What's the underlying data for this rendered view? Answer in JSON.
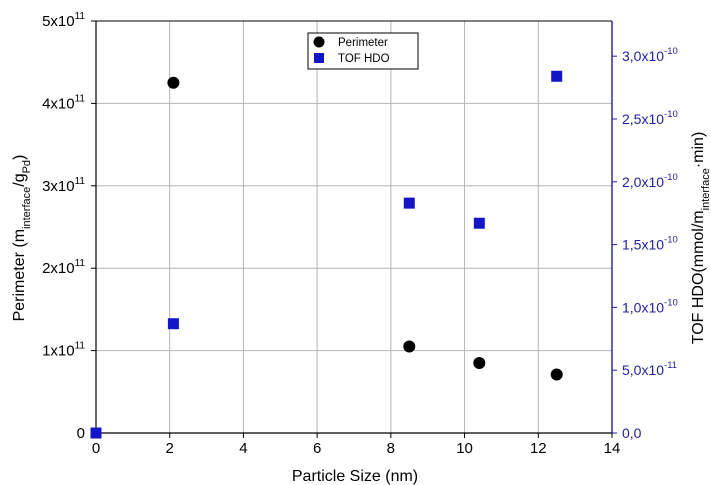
{
  "chart_data": {
    "type": "scatter",
    "x_axis": {
      "label": "Particle Size (nm)",
      "range": [
        0,
        14
      ],
      "ticks": [
        0,
        2,
        4,
        6,
        8,
        10,
        12,
        14
      ]
    },
    "y_left_axis": {
      "label_parts": [
        {
          "text": "Perimeter (m",
          "sub": false
        },
        {
          "text": "interface",
          "sub": true
        },
        {
          "text": "/g",
          "sub": false
        },
        {
          "text": "Pd",
          "sub": true
        },
        {
          "text": ")",
          "sub": false
        }
      ],
      "range": [
        0,
        500000000000
      ],
      "ticks": [
        {
          "value": 0,
          "base": "0",
          "exp": ""
        },
        {
          "value": 100000000000,
          "base": "1x10",
          "exp": "11"
        },
        {
          "value": 200000000000,
          "base": "2x10",
          "exp": "11"
        },
        {
          "value": 300000000000,
          "base": "3x10",
          "exp": "11"
        },
        {
          "value": 400000000000,
          "base": "4x10",
          "exp": "11"
        },
        {
          "value": 500000000000,
          "base": "5x10",
          "exp": "11"
        }
      ],
      "color": "#000000"
    },
    "y_right_axis": {
      "label_parts": [
        {
          "text": "TOF HDO(mmol/m",
          "sub": false
        },
        {
          "text": "interface",
          "sub": true
        },
        {
          "text": "·min)",
          "sub": false
        }
      ],
      "range": [
        0,
        3.28e-10
      ],
      "ticks": [
        {
          "value": 0,
          "base": "0,0",
          "exp": ""
        },
        {
          "value": 5e-11,
          "base": "5,0x10",
          "exp": "-11"
        },
        {
          "value": 1e-10,
          "base": "1,0x10",
          "exp": "-10"
        },
        {
          "value": 1.5e-10,
          "base": "1,5x10",
          "exp": "-10"
        },
        {
          "value": 2e-10,
          "base": "2,0x10",
          "exp": "-10"
        },
        {
          "value": 2.5e-10,
          "base": "2,5x10",
          "exp": "-10"
        },
        {
          "value": 3e-10,
          "base": "3,0x10",
          "exp": "-10"
        }
      ],
      "color": "#1f1fa0"
    },
    "series": [
      {
        "name": "Perimeter",
        "marker": "circle",
        "color": "#000000",
        "axis": "left",
        "x": [
          2.1,
          8.5,
          10.4,
          12.5
        ],
        "y": [
          425000000000,
          105000000000,
          85000000000,
          71000000000
        ]
      },
      {
        "name": "TOF HDO",
        "marker": "square",
        "color": "#1515c8",
        "axis": "right",
        "x": [
          0,
          2.1,
          8.5,
          10.4,
          12.5
        ],
        "y": [
          0,
          8.7e-11,
          1.83e-10,
          1.67e-10,
          2.84e-10
        ]
      }
    ],
    "grid": true,
    "legend_position": "top-center"
  }
}
